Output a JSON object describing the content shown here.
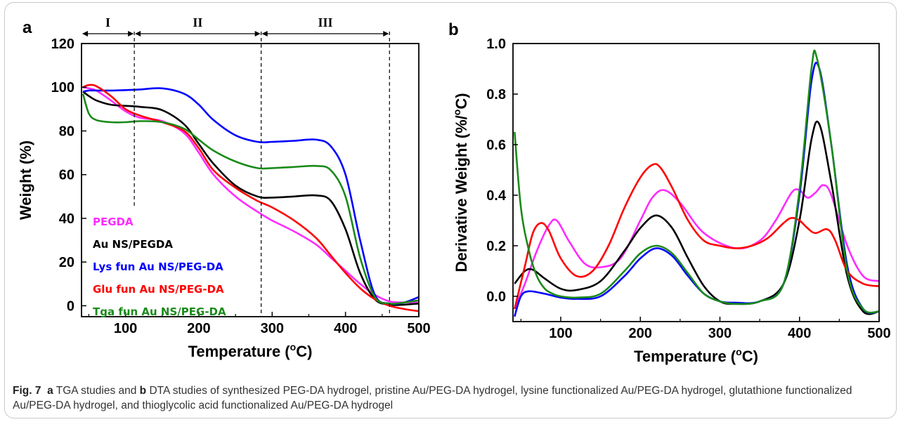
{
  "caption": {
    "fig_label": "Fig. 7",
    "a_label": "a",
    "a_text": "TGA studies and",
    "b_label": "b",
    "rest": "DTA studies of synthesized PEG-DA hydrogel, pristine Au/PEG-DA hydrogel, lysine functionalized Au/PEG-DA hydrogel, glutathione functionalized Au/PEG-DA hydrogel, and thioglycolic acid functionalized Au/PEG-DA hydrogel"
  },
  "chart_data": [
    {
      "panel": "a",
      "type": "line",
      "xlabel": "Temperature (°C)",
      "ylabel": "Weight (%)",
      "xlim": [
        40,
        500
      ],
      "ylim": [
        -5,
        120
      ],
      "xticks": [
        100,
        200,
        300,
        400,
        500
      ],
      "yticks": [
        0,
        20,
        40,
        60,
        80,
        100,
        120
      ],
      "legend_placement": "lower-left",
      "regions": [
        {
          "label": "I",
          "from": 40,
          "to": 112
        },
        {
          "label": "II",
          "from": 112,
          "to": 285
        },
        {
          "label": "III",
          "from": 285,
          "to": 460
        }
      ],
      "dashed_lines_x": [
        112,
        285,
        460
      ],
      "series": [
        {
          "name": "PEGDA",
          "color": "#ff2bff",
          "x": [
            42,
            50,
            60,
            80,
            100,
            120,
            150,
            180,
            200,
            220,
            250,
            280,
            300,
            330,
            360,
            380,
            400,
            420,
            440,
            460,
            480,
            500
          ],
          "y": [
            100,
            99.5,
            98.5,
            94,
            89,
            86,
            84.5,
            79,
            70,
            60,
            50,
            43,
            39,
            34,
            28,
            22,
            16,
            10,
            5,
            2,
            1.5,
            1.5
          ]
        },
        {
          "name": "Au NS/PEGDA",
          "color": "#000000",
          "x": [
            42,
            50,
            60,
            80,
            100,
            120,
            150,
            180,
            200,
            220,
            250,
            280,
            300,
            330,
            360,
            380,
            400,
            420,
            440,
            460,
            480,
            500
          ],
          "y": [
            98,
            96,
            94,
            92,
            91.5,
            91,
            89.5,
            83,
            74,
            65,
            55,
            50,
            49.5,
            50,
            50.5,
            48,
            35,
            15,
            3,
            0.5,
            0.5,
            1
          ]
        },
        {
          "name": "Lys fun Au NS/PEG-DA",
          "color": "#0000ff",
          "x": [
            42,
            50,
            60,
            80,
            100,
            120,
            150,
            180,
            200,
            220,
            250,
            280,
            300,
            330,
            360,
            380,
            400,
            420,
            440,
            460,
            480,
            500
          ],
          "y": [
            98,
            98.5,
            98.5,
            98.5,
            98.7,
            99,
            99.5,
            97,
            92,
            85,
            78,
            75,
            75,
            75.5,
            76,
            73,
            60,
            30,
            5,
            1,
            1.5,
            4
          ]
        },
        {
          "name": "Glu fun Au NS/PEG-DA",
          "color": "#ff0000",
          "x": [
            42,
            50,
            60,
            80,
            100,
            120,
            150,
            180,
            200,
            220,
            250,
            280,
            300,
            330,
            360,
            380,
            400,
            420,
            440,
            460,
            480,
            500
          ],
          "y": [
            100,
            101,
            100.5,
            96,
            90,
            87,
            84,
            80,
            72,
            62,
            54,
            48,
            45,
            39,
            31,
            23,
            15,
            8,
            3,
            0,
            -1.5,
            -2.5
          ]
        },
        {
          "name": "Tga fun Au NS/PEG-DA",
          "color": "#1a8a1a",
          "x": [
            42,
            50,
            60,
            80,
            100,
            120,
            150,
            180,
            200,
            220,
            250,
            280,
            300,
            330,
            360,
            380,
            400,
            420,
            440,
            460,
            480,
            500
          ],
          "y": [
            97,
            88,
            85,
            84,
            84,
            84.5,
            84,
            81,
            76,
            71,
            66,
            63,
            63,
            63.5,
            64,
            62,
            50,
            22,
            4,
            1,
            1.5,
            2.5
          ]
        }
      ]
    },
    {
      "panel": "b",
      "type": "line",
      "xlabel": "Temperature (°C)",
      "ylabel": "Derivative Weight (%/°C)",
      "xlim": [
        40,
        500
      ],
      "ylim": [
        -0.1,
        1.0
      ],
      "xticks": [
        100,
        200,
        300,
        400,
        500
      ],
      "yticks": [
        0.0,
        0.2,
        0.4,
        0.6,
        0.8,
        1.0
      ],
      "series": [
        {
          "name": "PEGDA",
          "color": "#ff2bff",
          "x": [
            42,
            55,
            70,
            85,
            95,
            110,
            130,
            150,
            175,
            200,
            215,
            230,
            250,
            280,
            320,
            350,
            370,
            390,
            400,
            410,
            420,
            430,
            440,
            460,
            480,
            500
          ],
          "y": [
            -0.05,
            0.05,
            0.18,
            0.28,
            0.3,
            0.22,
            0.13,
            0.115,
            0.15,
            0.3,
            0.39,
            0.42,
            0.37,
            0.25,
            0.19,
            0.22,
            0.3,
            0.41,
            0.42,
            0.39,
            0.41,
            0.44,
            0.4,
            0.2,
            0.08,
            0.06
          ]
        },
        {
          "name": "Au NS/PEGDA",
          "color": "#000000",
          "x": [
            42,
            55,
            65,
            80,
            100,
            120,
            150,
            180,
            200,
            220,
            240,
            260,
            280,
            300,
            320,
            350,
            380,
            400,
            415,
            425,
            440,
            460,
            480,
            500
          ],
          "y": [
            0.05,
            0.1,
            0.105,
            0.07,
            0.03,
            0.025,
            0.06,
            0.18,
            0.27,
            0.32,
            0.27,
            0.15,
            0.04,
            -0.02,
            -0.03,
            -0.02,
            0.05,
            0.3,
            0.62,
            0.68,
            0.45,
            0.08,
            -0.06,
            -0.06
          ]
        },
        {
          "name": "Lys fun Au NS/PEG-DA",
          "color": "#0000ff",
          "x": [
            42,
            50,
            60,
            80,
            100,
            120,
            150,
            180,
            200,
            220,
            240,
            260,
            280,
            300,
            320,
            350,
            380,
            400,
            415,
            425,
            440,
            460,
            480,
            500
          ],
          "y": [
            -0.08,
            0.0,
            0.02,
            0.01,
            -0.005,
            -0.01,
            0.0,
            0.08,
            0.15,
            0.19,
            0.16,
            0.08,
            0.01,
            -0.02,
            -0.025,
            -0.02,
            0.05,
            0.4,
            0.85,
            0.9,
            0.6,
            0.12,
            -0.05,
            -0.06
          ]
        },
        {
          "name": "Glu fun Au NS/PEG-DA",
          "color": "#ff0000",
          "x": [
            42,
            55,
            65,
            75,
            85,
            100,
            120,
            140,
            160,
            180,
            200,
            215,
            225,
            240,
            260,
            280,
            300,
            320,
            340,
            360,
            380,
            390,
            400,
            410,
            420,
            435,
            445,
            460,
            480,
            500
          ],
          "y": [
            -0.05,
            0.12,
            0.25,
            0.29,
            0.26,
            0.15,
            0.08,
            0.1,
            0.2,
            0.35,
            0.47,
            0.52,
            0.51,
            0.43,
            0.3,
            0.22,
            0.2,
            0.19,
            0.2,
            0.23,
            0.29,
            0.31,
            0.3,
            0.27,
            0.25,
            0.265,
            0.22,
            0.1,
            0.05,
            0.04
          ]
        },
        {
          "name": "Tga fun Au NS/PEG-DA",
          "color": "#1a8a1a",
          "x": [
            42,
            50,
            60,
            70,
            80,
            90,
            100,
            120,
            150,
            180,
            200,
            220,
            240,
            260,
            280,
            300,
            320,
            350,
            380,
            400,
            415,
            422,
            440,
            460,
            480,
            500
          ],
          "y": [
            0.65,
            0.35,
            0.18,
            0.08,
            0.03,
            0.01,
            0.0,
            -0.005,
            0.01,
            0.1,
            0.17,
            0.2,
            0.17,
            0.09,
            0.01,
            -0.02,
            -0.03,
            -0.02,
            0.05,
            0.42,
            0.9,
            0.94,
            0.6,
            0.1,
            -0.05,
            -0.06
          ]
        }
      ]
    }
  ]
}
